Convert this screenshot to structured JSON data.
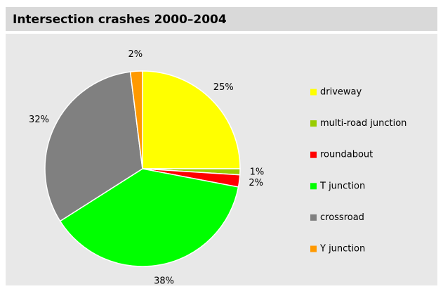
{
  "chart_data": {
    "type": "pie",
    "title": "Intersection crashes 2000–2004",
    "categories": [
      "driveway",
      "multi-road junction",
      "roundabout",
      "T junction",
      "crossroad",
      "Y junction"
    ],
    "values": [
      25,
      1,
      2,
      38,
      32,
      2
    ],
    "value_labels": [
      "25%",
      "1%",
      "2%",
      "38%",
      "32%",
      "2%"
    ],
    "colors": [
      "#ffff00",
      "#99cc00",
      "#ff0000",
      "#00ff00",
      "#808080",
      "#ff9900"
    ],
    "legend": "right"
  }
}
